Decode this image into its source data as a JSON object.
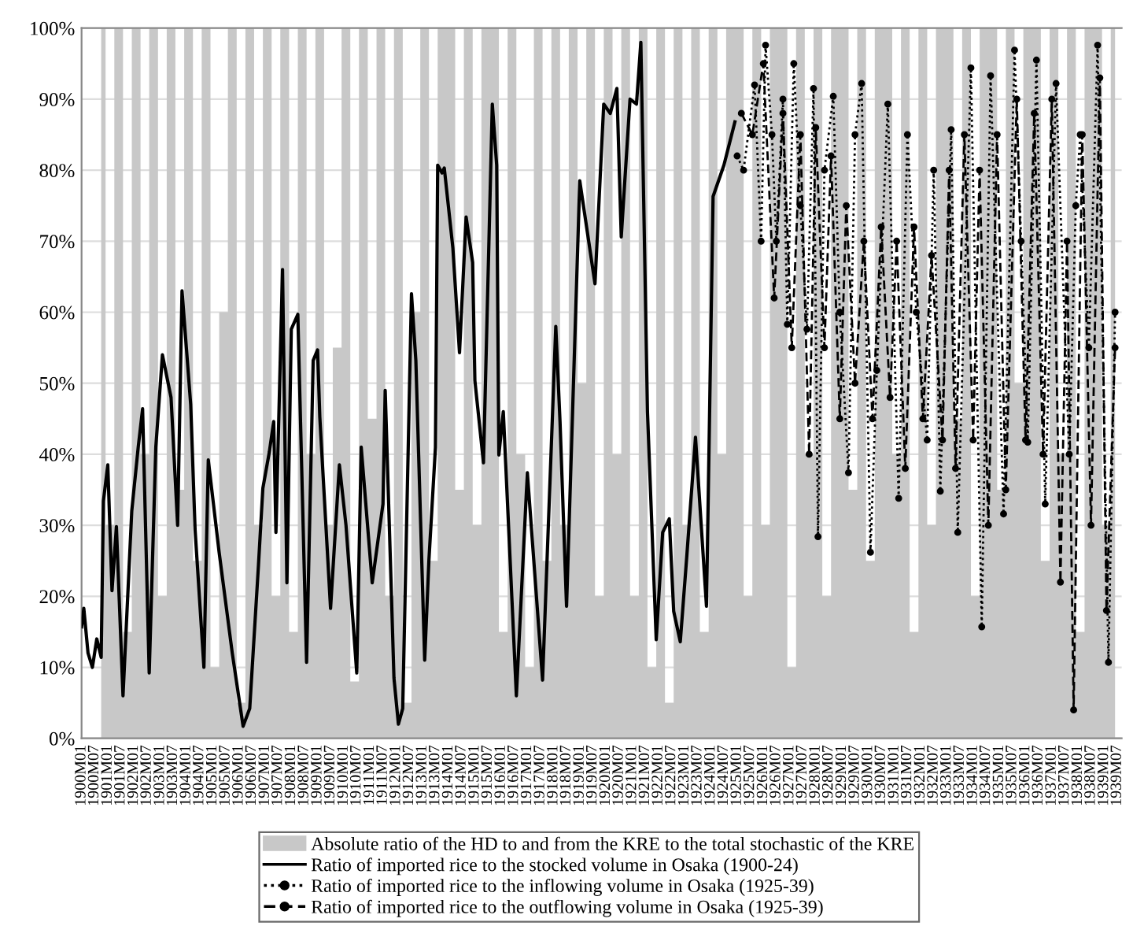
{
  "chart_data": {
    "type": "line",
    "xlim": [
      "1900-01",
      "1939-09"
    ],
    "xticks": [
      {
        "value": "1900-01",
        "label": "1900M01"
      },
      {
        "value": "1900-07",
        "label": "1900M07"
      },
      {
        "value": "1901-01",
        "label": "1901M01"
      },
      {
        "value": "1901-07",
        "label": "1901M07"
      },
      {
        "value": "1902-01",
        "label": "1902M01"
      },
      {
        "value": "1902-07",
        "label": "1902M07"
      },
      {
        "value": "1903-01",
        "label": "1903M01"
      },
      {
        "value": "1903-07",
        "label": "1903M07"
      },
      {
        "value": "1904-01",
        "label": "1904M01"
      },
      {
        "value": "1904-07",
        "label": "1904M07"
      },
      {
        "value": "1905-01",
        "label": "1905M01"
      },
      {
        "value": "1905-07",
        "label": "1905M07"
      },
      {
        "value": "1906-01",
        "label": "1906M01"
      },
      {
        "value": "1906-07",
        "label": "1906M07"
      },
      {
        "value": "1907-01",
        "label": "1907M01"
      },
      {
        "value": "1907-07",
        "label": "1907M07"
      },
      {
        "value": "1908-01",
        "label": "1908M01"
      },
      {
        "value": "1908-07",
        "label": "1908M07"
      },
      {
        "value": "1909-01",
        "label": "1909M01"
      },
      {
        "value": "1909-07",
        "label": "1909M07"
      },
      {
        "value": "1910-01",
        "label": "1910M01"
      },
      {
        "value": "1910-07",
        "label": "1910M07"
      },
      {
        "value": "1911-01",
        "label": "1911M01"
      },
      {
        "value": "1911-07",
        "label": "1911M07"
      },
      {
        "value": "1912-01",
        "label": "1912M01"
      },
      {
        "value": "1912-07",
        "label": "1912M07"
      },
      {
        "value": "1913-01",
        "label": "1913M01"
      },
      {
        "value": "1913-07",
        "label": "1913M07"
      },
      {
        "value": "1914-01",
        "label": "1914M01"
      },
      {
        "value": "1914-07",
        "label": "1914M07"
      },
      {
        "value": "1915-01",
        "label": "1915M01"
      },
      {
        "value": "1915-07",
        "label": "1915M07"
      },
      {
        "value": "1916-01",
        "label": "1916M01"
      },
      {
        "value": "1916-07",
        "label": "1916M07"
      },
      {
        "value": "1917-01",
        "label": "1917M01"
      },
      {
        "value": "1917-07",
        "label": "1917M07"
      },
      {
        "value": "1918-01",
        "label": "1918M01"
      },
      {
        "value": "1918-07",
        "label": "1918M07"
      },
      {
        "value": "1919-01",
        "label": "1919M01"
      },
      {
        "value": "1919-07",
        "label": "1919M07"
      },
      {
        "value": "1920-01",
        "label": "1920M01"
      },
      {
        "value": "1920-07",
        "label": "1920M07"
      },
      {
        "value": "1921-01",
        "label": "1921M01"
      },
      {
        "value": "1921-07",
        "label": "1921M07"
      },
      {
        "value": "1922-01",
        "label": "1922M01"
      },
      {
        "value": "1922-07",
        "label": "1922M07"
      },
      {
        "value": "1923-01",
        "label": "1923M01"
      },
      {
        "value": "1923-07",
        "label": "1923M07"
      },
      {
        "value": "1924-01",
        "label": "1924M01"
      },
      {
        "value": "1924-07",
        "label": "1924M07"
      },
      {
        "value": "1925-01",
        "label": "1925M01"
      },
      {
        "value": "1925-07",
        "label": "1925M07"
      },
      {
        "value": "1926-01",
        "label": "1926M01"
      },
      {
        "value": "1926-07",
        "label": "1926M07"
      },
      {
        "value": "1927-01",
        "label": "1927M01"
      },
      {
        "value": "1927-07",
        "label": "1927M07"
      },
      {
        "value": "1928-01",
        "label": "1928M01"
      },
      {
        "value": "1928-07",
        "label": "1928M07"
      },
      {
        "value": "1929-01",
        "label": "1929M01"
      },
      {
        "value": "1929-07",
        "label": "1929M07"
      },
      {
        "value": "1930-01",
        "label": "1930M01"
      },
      {
        "value": "1930-07",
        "label": "1930M07"
      },
      {
        "value": "1931-01",
        "label": "1931M01"
      },
      {
        "value": "1931-07",
        "label": "1931M07"
      },
      {
        "value": "1932-01",
        "label": "1932M01"
      },
      {
        "value": "1932-07",
        "label": "1932M07"
      },
      {
        "value": "1933-01",
        "label": "1933M01"
      },
      {
        "value": "1933-07",
        "label": "1933M07"
      },
      {
        "value": "1934-01",
        "label": "1934M01"
      },
      {
        "value": "1934-07",
        "label": "1934M07"
      },
      {
        "value": "1935-01",
        "label": "1935M01"
      },
      {
        "value": "1935-07",
        "label": "1935M07"
      },
      {
        "value": "1936-01",
        "label": "1936M01"
      },
      {
        "value": "1936-07",
        "label": "1936M07"
      },
      {
        "value": "1937-01",
        "label": "1937M01"
      },
      {
        "value": "1937-07",
        "label": "1937M07"
      },
      {
        "value": "1938-01",
        "label": "1938M01"
      },
      {
        "value": "1938-07",
        "label": "1938M07"
      },
      {
        "value": "1939-01",
        "label": "1939M01"
      },
      {
        "value": "1939-07",
        "label": "1939M07"
      }
    ],
    "ylim": [
      0,
      100
    ],
    "yticks": [
      {
        "value": 0,
        "label": "0%"
      },
      {
        "value": 10,
        "label": "10%"
      },
      {
        "value": 20,
        "label": "20%"
      },
      {
        "value": 30,
        "label": "30%"
      },
      {
        "value": 40,
        "label": "40%"
      },
      {
        "value": 50,
        "label": "50%"
      },
      {
        "value": 60,
        "label": "60%"
      },
      {
        "value": 70,
        "label": "70%"
      },
      {
        "value": 80,
        "label": "80%"
      },
      {
        "value": 90,
        "label": "90%"
      },
      {
        "value": 100,
        "label": "100%"
      }
    ],
    "grid": "y",
    "legend": "bottom",
    "series": [
      {
        "name": "Absolute ratio of the HD to and from the KRE to the total stochastic of the KRE",
        "type": "area",
        "color": "#c8c8c8",
        "x": [
          "1900-10",
          "1901-02",
          "1901-06",
          "1901-10",
          "1902-02",
          "1902-06",
          "1902-10",
          "1903-02",
          "1903-06",
          "1903-10",
          "1904-02",
          "1904-06",
          "1904-10",
          "1905-02",
          "1905-06",
          "1905-10",
          "1906-02",
          "1906-06",
          "1906-10",
          "1907-02",
          "1907-06",
          "1907-10",
          "1908-02",
          "1908-06",
          "1908-10",
          "1909-02",
          "1909-06",
          "1909-10",
          "1910-02",
          "1910-06",
          "1910-10",
          "1911-02",
          "1911-06",
          "1911-10",
          "1912-02",
          "1912-06",
          "1912-10",
          "1913-02",
          "1913-06",
          "1913-10",
          "1914-02",
          "1914-06",
          "1914-10",
          "1915-02",
          "1915-06",
          "1915-10",
          "1916-02",
          "1916-06",
          "1916-10",
          "1917-02",
          "1917-06",
          "1917-10",
          "1918-02",
          "1918-06",
          "1918-10",
          "1919-02",
          "1919-06",
          "1919-10",
          "1920-02",
          "1920-06",
          "1920-10",
          "1921-02",
          "1921-06",
          "1921-10",
          "1922-02",
          "1922-06",
          "1922-10",
          "1923-02",
          "1923-06",
          "1923-10",
          "1924-02",
          "1924-06",
          "1924-10",
          "1925-02",
          "1925-06",
          "1925-10",
          "1926-02",
          "1926-06",
          "1926-10",
          "1927-02",
          "1927-06",
          "1927-10",
          "1928-02",
          "1928-06",
          "1928-10",
          "1929-02",
          "1929-06",
          "1929-10",
          "1930-02",
          "1930-06",
          "1930-10",
          "1931-02",
          "1931-06",
          "1931-10",
          "1932-02",
          "1932-06",
          "1932-10",
          "1933-02",
          "1933-06",
          "1933-10",
          "1934-02",
          "1934-06",
          "1934-10",
          "1935-02",
          "1935-06",
          "1935-10",
          "1936-02",
          "1936-06",
          "1936-10",
          "1937-02",
          "1937-06",
          "1937-10",
          "1938-02",
          "1938-06",
          "1938-10",
          "1939-02",
          "1939-06"
        ],
        "values": [
          100,
          30,
          100,
          15,
          100,
          40,
          100,
          20,
          100,
          35,
          100,
          25,
          100,
          10,
          60,
          100,
          5,
          100,
          30,
          100,
          20,
          100,
          15,
          100,
          40,
          100,
          30,
          55,
          100,
          8,
          100,
          45,
          100,
          20,
          100,
          5,
          60,
          100,
          25,
          100,
          100,
          35,
          100,
          30,
          100,
          100,
          15,
          100,
          40,
          10,
          100,
          25,
          100,
          30,
          100,
          50,
          100,
          20,
          100,
          40,
          100,
          20,
          100,
          10,
          100,
          5,
          100,
          30,
          100,
          15,
          100,
          40,
          100,
          100,
          20,
          100,
          30,
          100,
          100,
          10,
          100,
          40,
          100,
          20,
          100,
          100,
          35,
          100,
          25,
          100,
          100,
          40,
          100,
          15,
          100,
          30,
          100,
          100,
          45,
          100,
          20,
          100,
          100,
          35,
          100,
          50,
          100,
          100,
          25,
          100,
          40,
          100,
          15,
          100,
          100,
          30,
          100
        ]
      },
      {
        "name": "Ratio of imported rice to the stocked volume in Osaka (1900-24)",
        "color": "#000000",
        "line_style": "solid",
        "x": [
          "1900-01",
          "1900-02",
          "1900-04",
          "1900-06",
          "1900-08",
          "1900-10",
          "1900-11",
          "1901-01",
          "1901-03",
          "1901-05",
          "1901-08",
          "1901-12",
          "1902-03",
          "1902-05",
          "1902-08",
          "1902-11",
          "1903-02",
          "1903-06",
          "1903-09",
          "1903-11",
          "1904-03",
          "1904-05",
          "1904-09",
          "1904-11",
          "1905-04",
          "1905-10",
          "1906-03",
          "1906-06",
          "1906-10",
          "1906-12",
          "1907-03",
          "1907-05",
          "1907-06",
          "1907-09",
          "1907-11",
          "1908-01",
          "1908-04",
          "1908-08",
          "1908-11",
          "1909-01",
          "1909-02",
          "1909-07",
          "1909-11",
          "1910-02",
          "1910-07",
          "1910-09",
          "1911-02",
          "1911-07",
          "1911-08",
          "1911-12",
          "1912-02",
          "1912-04",
          "1912-08",
          "1912-10",
          "1913-02",
          "1913-04",
          "1913-07",
          "1913-08",
          "1913-10",
          "1913-11",
          "1914-03",
          "1914-06",
          "1914-09",
          "1914-12",
          "1915-01",
          "1915-05",
          "1915-09",
          "1915-11",
          "1915-12",
          "1916-02",
          "1916-08",
          "1917-01",
          "1917-08",
          "1918-02",
          "1918-04",
          "1918-07",
          "1919-01",
          "1919-08",
          "1919-12",
          "1920-03",
          "1920-06",
          "1920-08",
          "1920-12",
          "1921-03",
          "1921-05",
          "1921-08",
          "1921-12",
          "1922-03",
          "1922-06",
          "1922-08",
          "1922-11",
          "1923-02",
          "1923-06",
          "1923-11",
          "1924-02",
          "1924-07",
          "1924-12"
        ],
        "values": [
          15.7,
          18.3,
          12,
          10,
          14,
          11.4,
          33.4,
          38.5,
          20.8,
          29.8,
          6,
          32,
          41,
          46.4,
          9.2,
          41,
          54,
          48,
          30,
          63,
          47,
          29.4,
          10,
          39.2,
          26.2,
          12,
          1.7,
          4.2,
          24.4,
          35.2,
          40.3,
          44.6,
          29,
          66,
          21.9,
          57.6,
          59.7,
          10.7,
          53.2,
          54.7,
          45.3,
          18.3,
          38.5,
          30,
          9.2,
          41,
          21.9,
          33,
          49,
          8.5,
          2,
          4.2,
          62.6,
          53.2,
          11,
          25.1,
          41,
          80.7,
          79.6,
          80.3,
          69,
          54.3,
          73.4,
          67,
          50.4,
          38.8,
          89.3,
          80.7,
          39.9,
          46,
          6,
          37.4,
          8.2,
          58,
          44.6,
          18.6,
          78.5,
          64,
          89.3,
          88,
          91.5,
          70.6,
          90,
          89.3,
          98,
          46,
          13.9,
          29,
          30.9,
          17.9,
          13.6,
          25.8,
          42.4,
          18.6,
          76.3,
          80.7,
          86.8
        ]
      },
      {
        "name": "Ratio of imported rice to the inflowing volume in Osaka (1925-39)",
        "color": "#000000",
        "line_style": "dotted",
        "marker": "circle",
        "x": [
          "1925-01",
          "1925-04",
          "1925-09",
          "1925-12",
          "1926-02",
          "1926-05",
          "1926-07",
          "1926-10",
          "1926-12",
          "1927-03",
          "1927-06",
          "1927-09",
          "1927-12",
          "1928-02",
          "1928-05",
          "1928-09",
          "1928-12",
          "1929-04",
          "1929-07",
          "1929-10",
          "1930-02",
          "1930-05",
          "1930-10",
          "1931-03",
          "1931-07",
          "1931-11",
          "1932-04",
          "1932-07",
          "1932-10",
          "1933-03",
          "1933-06",
          "1933-12",
          "1934-05",
          "1934-09",
          "1935-03",
          "1935-08",
          "1935-11",
          "1936-02",
          "1936-06",
          "1936-10",
          "1937-03",
          "1937-09",
          "1937-12",
          "1938-02",
          "1938-06",
          "1938-10",
          "1939-03",
          "1939-06"
        ],
        "values": [
          82,
          80,
          92,
          70,
          97.6,
          85,
          70,
          90,
          58.3,
          95,
          75,
          57.6,
          91.5,
          28.4,
          80,
          90.4,
          60,
          37.4,
          85,
          92.2,
          26.2,
          51.8,
          89.3,
          33.8,
          85,
          60,
          42,
          80,
          34.8,
          85.7,
          29,
          94.4,
          15.7,
          93.3,
          31.6,
          96.9,
          70,
          41.7,
          95.5,
          33,
          92.2,
          40,
          75,
          85,
          55,
          97.6,
          10.7,
          60
        ]
      },
      {
        "name": "Ratio of imported rice to the outflowing volume in Osaka (1925-39)",
        "color": "#000000",
        "line_style": "dashed",
        "marker": "circle",
        "x": [
          "1925-03",
          "1925-08",
          "1926-01",
          "1926-06",
          "1926-10",
          "1927-02",
          "1927-06",
          "1927-10",
          "1928-01",
          "1928-05",
          "1928-08",
          "1928-12",
          "1929-03",
          "1929-07",
          "1929-11",
          "1930-03",
          "1930-07",
          "1930-11",
          "1931-02",
          "1931-06",
          "1931-10",
          "1932-02",
          "1932-06",
          "1932-11",
          "1933-02",
          "1933-05",
          "1933-09",
          "1934-01",
          "1934-04",
          "1934-08",
          "1934-12",
          "1935-04",
          "1935-09",
          "1936-01",
          "1936-05",
          "1936-09",
          "1937-01",
          "1937-05",
          "1937-08",
          "1937-11",
          "1938-03",
          "1938-07",
          "1938-11",
          "1939-02",
          "1939-06"
        ],
        "values": [
          88,
          85,
          95,
          62,
          88,
          55,
          85,
          40,
          86,
          55,
          82,
          45,
          75,
          50,
          70,
          45,
          72,
          48,
          70,
          38,
          72,
          45,
          68,
          42,
          80,
          38,
          85,
          42,
          80,
          30,
          85,
          35,
          90,
          42,
          88,
          40,
          90,
          22,
          70,
          4,
          85,
          30,
          93,
          18,
          55
        ]
      }
    ]
  }
}
